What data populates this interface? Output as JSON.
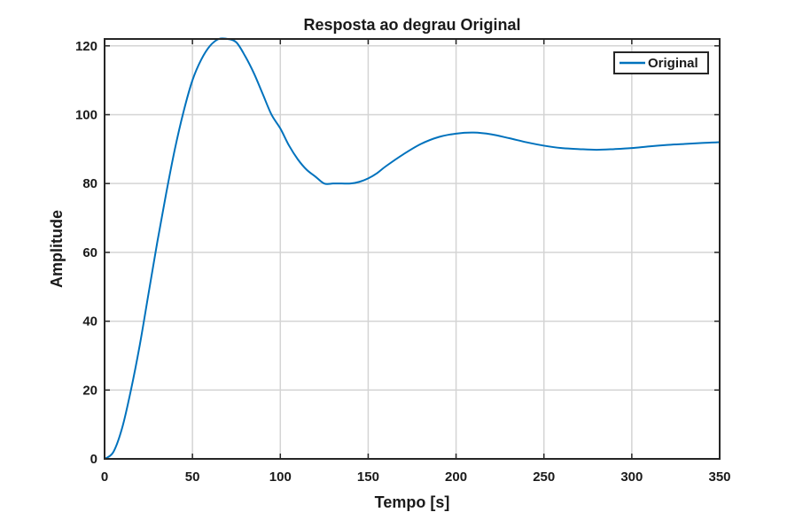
{
  "chart_data": {
    "type": "line",
    "title": "Resposta ao degrau Original",
    "xlabel": "Tempo [s]",
    "ylabel": "Amplitude",
    "xlim": [
      0,
      350
    ],
    "ylim": [
      0,
      122
    ],
    "xticks": [
      0,
      50,
      100,
      150,
      200,
      250,
      300,
      350
    ],
    "yticks": [
      0,
      20,
      40,
      60,
      80,
      100,
      120
    ],
    "grid": true,
    "legend_position": "top-right",
    "series": [
      {
        "name": "Original",
        "color": "#0072BD",
        "x": [
          0,
          5,
          10,
          15,
          20,
          25,
          30,
          35,
          40,
          45,
          50,
          55,
          60,
          65,
          70,
          75,
          80,
          85,
          90,
          95,
          100,
          105,
          110,
          115,
          120,
          125,
          130,
          135,
          140,
          145,
          150,
          155,
          160,
          170,
          180,
          190,
          200,
          210,
          220,
          230,
          240,
          250,
          260,
          270,
          280,
          290,
          300,
          310,
          320,
          330,
          340,
          350
        ],
        "y": [
          0,
          2,
          9,
          20,
          33,
          48,
          63,
          77,
          90,
          101,
          110,
          116,
          120,
          122,
          122,
          121,
          117,
          112,
          106,
          100,
          96,
          91,
          87,
          84,
          82,
          80,
          80,
          80,
          80,
          80.5,
          81.5,
          83,
          85,
          88.5,
          91.5,
          93.5,
          94.5,
          94.8,
          94.3,
          93.2,
          92,
          91,
          90.3,
          90,
          89.8,
          90,
          90.3,
          90.8,
          91.2,
          91.5,
          91.8,
          92
        ]
      }
    ]
  }
}
